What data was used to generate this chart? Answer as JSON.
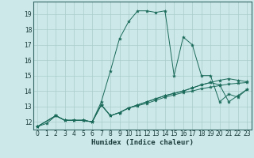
{
  "xlabel": "Humidex (Indice chaleur)",
  "xlim": [
    -0.5,
    23.5
  ],
  "ylim": [
    11.5,
    19.8
  ],
  "xticks": [
    0,
    1,
    2,
    3,
    4,
    5,
    6,
    7,
    8,
    9,
    10,
    11,
    12,
    13,
    14,
    15,
    16,
    17,
    18,
    19,
    20,
    21,
    22,
    23
  ],
  "yticks": [
    12,
    13,
    14,
    15,
    16,
    17,
    18,
    19
  ],
  "bg_color": "#cce8e8",
  "grid_color": "#aacccc",
  "line_color": "#1a6a5a",
  "lines": [
    {
      "x": [
        0,
        1,
        2,
        3,
        4,
        5,
        6,
        7,
        8,
        9,
        10,
        11,
        12,
        13,
        14,
        15,
        16,
        17,
        18,
        19,
        20,
        21,
        22,
        23
      ],
      "y": [
        11.7,
        11.9,
        12.4,
        12.1,
        12.1,
        12.1,
        12.0,
        13.3,
        15.3,
        17.4,
        18.5,
        19.2,
        19.2,
        19.1,
        19.2,
        15.0,
        17.5,
        17.0,
        15.0,
        15.0,
        13.3,
        13.8,
        13.6,
        14.1
      ]
    },
    {
      "x": [
        0,
        2,
        3,
        4,
        5,
        6,
        7,
        8,
        9,
        10,
        11,
        12,
        13,
        14,
        15,
        16,
        17,
        18,
        19,
        20,
        21,
        22,
        23
      ],
      "y": [
        11.7,
        12.4,
        12.1,
        12.1,
        12.1,
        12.0,
        13.1,
        12.4,
        12.6,
        12.9,
        13.1,
        13.3,
        13.5,
        13.7,
        13.85,
        14.0,
        14.2,
        14.4,
        14.55,
        14.4,
        13.3,
        13.7,
        14.1
      ]
    },
    {
      "x": [
        0,
        2,
        3,
        4,
        5,
        6,
        7,
        8,
        9,
        10,
        11,
        12,
        13,
        14,
        15,
        16,
        17,
        18,
        19,
        20,
        21,
        22,
        23
      ],
      "y": [
        11.7,
        12.4,
        12.1,
        12.1,
        12.1,
        12.0,
        13.1,
        12.4,
        12.6,
        12.9,
        13.1,
        13.3,
        13.5,
        13.7,
        13.85,
        14.0,
        14.2,
        14.4,
        14.55,
        14.7,
        14.8,
        14.7,
        14.6
      ]
    },
    {
      "x": [
        0,
        2,
        3,
        4,
        5,
        6,
        7,
        8,
        9,
        10,
        11,
        12,
        13,
        14,
        15,
        16,
        17,
        18,
        19,
        20,
        21,
        22,
        23
      ],
      "y": [
        11.7,
        12.4,
        12.1,
        12.1,
        12.1,
        12.0,
        13.1,
        12.4,
        12.6,
        12.9,
        13.05,
        13.2,
        13.4,
        13.6,
        13.75,
        13.9,
        14.0,
        14.15,
        14.25,
        14.35,
        14.45,
        14.5,
        14.55
      ]
    }
  ]
}
